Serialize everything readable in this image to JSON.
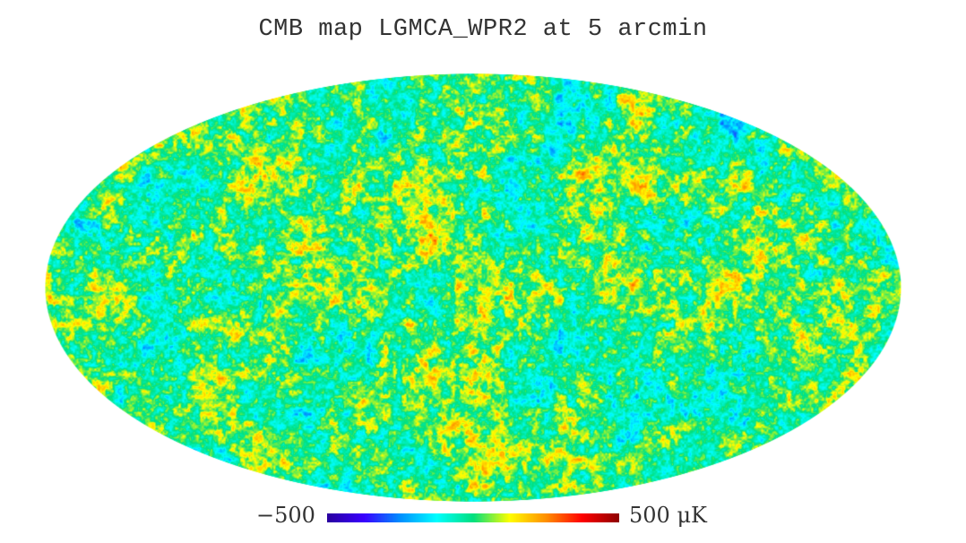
{
  "chart_data": {
    "type": "heatmap",
    "title": "CMB map LGMCA_WPR2 at 5 arcmin",
    "projection": "mollweide",
    "colorbar": {
      "min": -500,
      "max": 500,
      "min_label": "−500",
      "max_label": "500 μK",
      "unit": "μK",
      "colormap": [
        "#2a00a0",
        "#3a00ff",
        "#0090ff",
        "#00ffff",
        "#00e080",
        "#ffff00",
        "#ff9000",
        "#ff0000",
        "#900000"
      ]
    }
  }
}
